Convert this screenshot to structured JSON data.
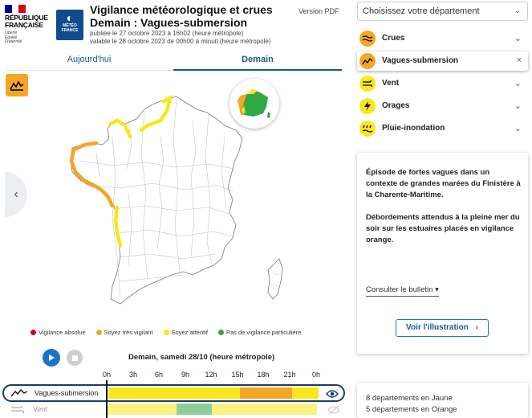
{
  "header": {
    "republic_line1": "RÉPUBLIQUE",
    "republic_line2": "FRANÇAISE",
    "motto": [
      "Liberté",
      "Égalité",
      "Fraternité"
    ],
    "meteo_logo_text": "MÉTÉO FRANCE",
    "title_line1": "Vigilance météorologique et crues",
    "title_line2": "Demain : Vagues-submersion",
    "published": "publiée le 27 octobre 2023 à 16h02 (heure métropole)",
    "valid": "valable le 28 octobre 2023 de 00h00 à minuit (heure métropole)",
    "version_pdf": "Version PDF"
  },
  "tabs": [
    {
      "label": "Aujourd'hui",
      "active": false
    },
    {
      "label": "Demain",
      "active": true
    }
  ],
  "map": {
    "phenomenon_icon": "wave-icon",
    "inset_icon": "mini-map-icon",
    "prev_icon": "chevron-left-icon",
    "prev_label": "‹"
  },
  "legend": [
    {
      "label": "Vigilance absolue",
      "color": "#d0021b"
    },
    {
      "label": "Soyez très vigilant",
      "color": "#f5a623"
    },
    {
      "label": "Soyez attentif",
      "color": "#f8e71c"
    },
    {
      "label": "Pas de vigilance particulière",
      "color": "#31a846"
    }
  ],
  "timeline": {
    "date_label": "Demain, samedi 28/10 (heure métropole)",
    "hours": [
      "0h",
      "3h",
      "6h",
      "9h",
      "12h",
      "15h",
      "18h",
      "21h",
      "0h"
    ],
    "rows": [
      {
        "label": "Vagues-submersion",
        "icon": "wave-icon",
        "segments": [
          {
            "from": 0,
            "to": 15,
            "level": "yellow"
          },
          {
            "from": 15,
            "to": 21,
            "level": "orange"
          },
          {
            "from": 21,
            "to": 24,
            "level": "yellow"
          }
        ]
      },
      {
        "label": "Vent",
        "icon": "wind-icon",
        "segments": [
          {
            "from": 0,
            "to": 8,
            "level": "yellow"
          },
          {
            "from": 8,
            "to": 12,
            "level": "green"
          },
          {
            "from": 12,
            "to": 24,
            "level": "yellow"
          }
        ]
      }
    ]
  },
  "level_colors": {
    "yellow": "#f8e71c",
    "orange": "#f5a623",
    "green": "#31a846"
  },
  "department_select": {
    "placeholder": "Choisissez votre département",
    "chevron": "⌄"
  },
  "phenomena": [
    {
      "label": "Crues",
      "icon": "flood-icon",
      "color": "#f5a623",
      "action": "⌄",
      "selected": false
    },
    {
      "label": "Vagues-submersion",
      "icon": "wave-icon",
      "color": "#f5a623",
      "action": "×",
      "selected": true
    },
    {
      "label": "Vent",
      "icon": "wind-icon",
      "color": "#f8e71c",
      "action": "⌄",
      "selected": false
    },
    {
      "label": "Orages",
      "icon": "lightning-icon",
      "color": "#f8e71c",
      "action": "⌄",
      "selected": false
    },
    {
      "label": "Pluie-inondation",
      "icon": "rain-icon",
      "color": "#f8e71c",
      "action": "⌄",
      "selected": false
    }
  ],
  "info": {
    "paragraph1": "Épisode de fortes vagues dans un contexte de grandes marées du Finistère à la Charente-Maritime.",
    "paragraph2": "Débordements attendus à la pleine mer du soir sur les estuaires placés en vigilance orange.",
    "bulletin_label": "Consulter le bulletin",
    "bulletin_caret": "▾",
    "illustration_button": "Voir l'illustration",
    "illustration_arrow": "›"
  },
  "counts": {
    "yellow": "8 départements en Jaune",
    "orange": "5 départements en Orange"
  }
}
